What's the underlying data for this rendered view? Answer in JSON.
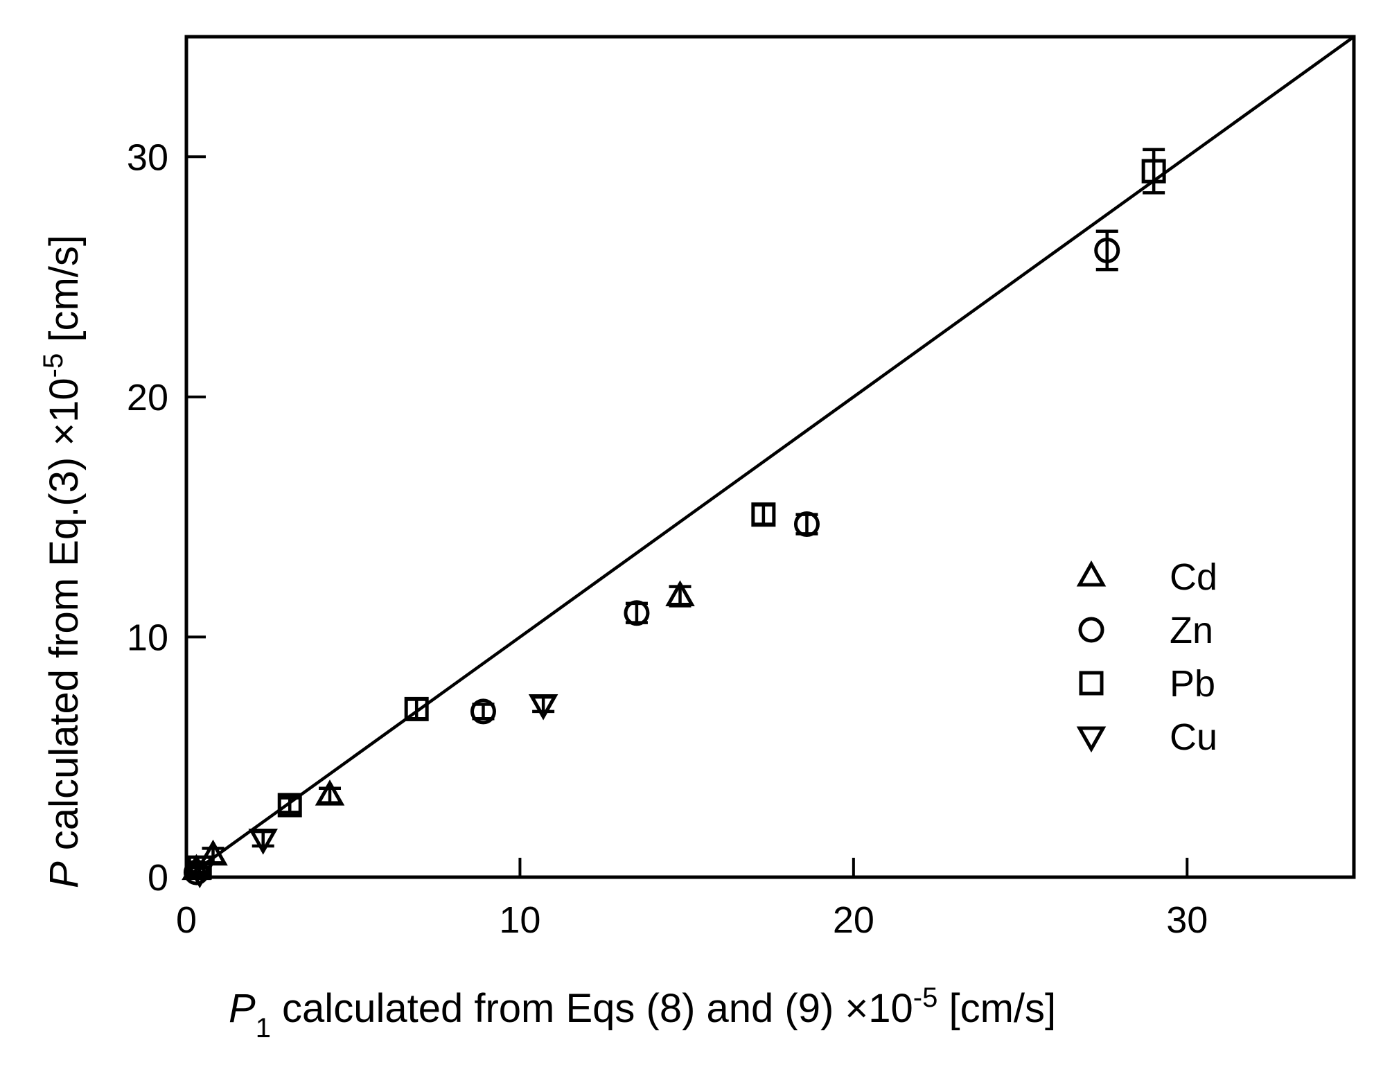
{
  "chart_data": {
    "type": "scatter",
    "title": "",
    "xlabel": {
      "var": "P",
      "sub": "1",
      "text": " calculated from Eqs (8) and (9) ×10",
      "exp": "-5",
      "unit": " [cm/s]"
    },
    "ylabel": {
      "var": "P",
      "text": " calculated from Eq.(3) ×10",
      "exp": "-5",
      "unit": " [cm/s]"
    },
    "xlim": [
      0,
      35
    ],
    "ylim": [
      0,
      35
    ],
    "xticks": [
      0,
      10,
      20,
      30
    ],
    "yticks": [
      0,
      10,
      20,
      30
    ],
    "xtick_labels": [
      "0",
      "10",
      "20",
      "30"
    ],
    "ytick_labels": [
      "0",
      "10",
      "20",
      "30"
    ],
    "grid": false,
    "legend_position": "right",
    "reference_line": {
      "type": "y=x",
      "from": [
        0,
        0
      ],
      "to": [
        35,
        35
      ]
    },
    "series": [
      {
        "name": "Cd",
        "marker": "triangle-up",
        "points": [
          {
            "x": 0.3,
            "y": 0.3,
            "err": 0.2
          },
          {
            "x": 0.8,
            "y": 0.9,
            "err": 0.3
          },
          {
            "x": 4.3,
            "y": 3.4,
            "err": 0.3
          },
          {
            "x": 14.8,
            "y": 11.7,
            "err": 0.4
          }
        ]
      },
      {
        "name": "Zn",
        "marker": "circle",
        "points": [
          {
            "x": 0.3,
            "y": 0.2,
            "err": 0.2
          },
          {
            "x": 8.9,
            "y": 6.9,
            "err": 0.3
          },
          {
            "x": 13.5,
            "y": 11.0,
            "err": 0.4
          },
          {
            "x": 18.6,
            "y": 14.7,
            "err": 0.4
          },
          {
            "x": 27.6,
            "y": 26.1,
            "err": 0.8
          }
        ]
      },
      {
        "name": "Pb",
        "marker": "square",
        "points": [
          {
            "x": 0.4,
            "y": 0.4,
            "err": 0.2
          },
          {
            "x": 3.1,
            "y": 3.0,
            "err": 0.3
          },
          {
            "x": 6.9,
            "y": 7.0,
            "err": 0.4
          },
          {
            "x": 17.3,
            "y": 15.1,
            "err": 0.4
          },
          {
            "x": 29.0,
            "y": 29.4,
            "err": 0.9
          }
        ]
      },
      {
        "name": "Cu",
        "marker": "triangle-down",
        "points": [
          {
            "x": 0.4,
            "y": 0.2,
            "err": 0.2
          },
          {
            "x": 2.3,
            "y": 1.6,
            "err": 0.3
          },
          {
            "x": 10.7,
            "y": 7.2,
            "err": 0.3
          }
        ]
      }
    ]
  }
}
